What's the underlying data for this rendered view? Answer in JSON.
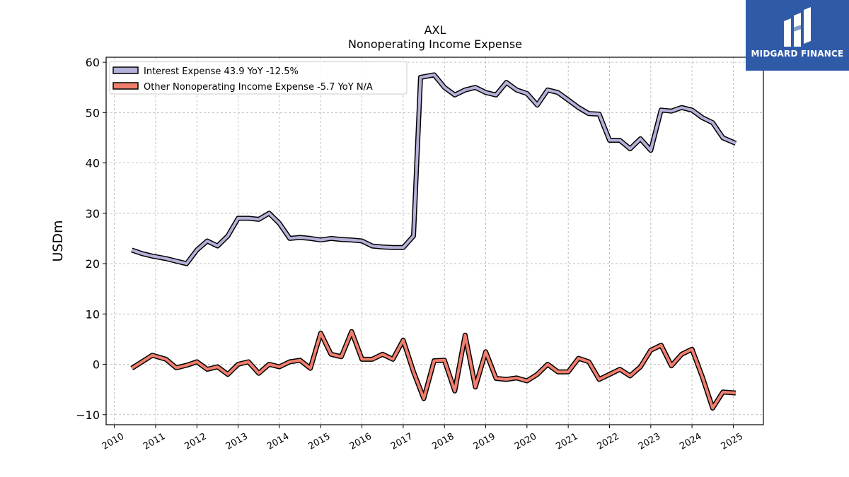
{
  "brand": {
    "name": "MIDGARD FINANCE",
    "icon": "midgard-logo-icon",
    "color": "#2f5aa8"
  },
  "chart_data": {
    "type": "line",
    "title": "AXL",
    "subtitle": "Nonoperating Income Expense",
    "ylabel": "USDm",
    "xlabel": "",
    "ylim": [
      -12,
      61
    ],
    "xlim": [
      2009.8,
      2025.73
    ],
    "yticks": [
      -10,
      0,
      10,
      20,
      30,
      40,
      50,
      60
    ],
    "xticks": [
      "2010",
      "2011",
      "2012",
      "2013",
      "2014",
      "2015",
      "2016",
      "2017",
      "2018",
      "2019",
      "2020",
      "2021",
      "2022",
      "2023",
      "2024",
      "2025"
    ],
    "grid": true,
    "legend_position": "top-left",
    "series": [
      {
        "name": "Interest Expense",
        "legend_label": "Interest Expense  43.9 YoY -12.5%",
        "color": "#b4b1d9",
        "x": [
          2010.42,
          2010.67,
          2010.92,
          2011.25,
          2011.5,
          2011.75,
          2012.0,
          2012.25,
          2012.5,
          2012.75,
          2013.0,
          2013.25,
          2013.5,
          2013.75,
          2014.0,
          2014.25,
          2014.5,
          2014.75,
          2015.0,
          2015.25,
          2015.5,
          2015.75,
          2016.0,
          2016.25,
          2016.5,
          2016.75,
          2017.0,
          2017.25,
          2017.42,
          2017.75,
          2018.0,
          2018.25,
          2018.5,
          2018.75,
          2019.0,
          2019.25,
          2019.5,
          2019.75,
          2020.0,
          2020.25,
          2020.5,
          2020.75,
          2021.0,
          2021.25,
          2021.5,
          2021.75,
          2022.0,
          2022.25,
          2022.5,
          2022.75,
          2023.0,
          2023.25,
          2023.5,
          2023.75,
          2024.0,
          2024.25,
          2024.5,
          2024.75,
          2025.06
        ],
        "y": [
          22.7,
          22.0,
          21.5,
          21.0,
          20.5,
          20.0,
          22.7,
          24.5,
          23.5,
          25.5,
          29.0,
          29.0,
          28.8,
          30.0,
          28.0,
          25.0,
          25.2,
          25.0,
          24.7,
          25.0,
          24.8,
          24.7,
          24.5,
          23.5,
          23.3,
          23.2,
          23.2,
          25.5,
          57.0,
          57.5,
          55.0,
          53.5,
          54.5,
          55.0,
          54.0,
          53.5,
          56.0,
          54.5,
          53.8,
          51.5,
          54.5,
          54.0,
          52.5,
          51.0,
          49.8,
          49.7,
          44.5,
          44.5,
          42.8,
          44.8,
          42.5,
          50.5,
          50.3,
          51.0,
          50.5,
          49.0,
          48.0,
          45.0,
          43.9
        ]
      },
      {
        "name": "Other Nonoperating Income Expense",
        "legend_label": "Other Nonoperating Income Expense  -5.7 YoY N/A",
        "color": "#f07e6e",
        "x": [
          2010.42,
          2010.67,
          2010.92,
          2011.25,
          2011.5,
          2011.75,
          2012.0,
          2012.25,
          2012.5,
          2012.75,
          2013.0,
          2013.25,
          2013.5,
          2013.75,
          2014.0,
          2014.25,
          2014.5,
          2014.75,
          2015.0,
          2015.25,
          2015.5,
          2015.75,
          2016.0,
          2016.25,
          2016.5,
          2016.75,
          2017.0,
          2017.25,
          2017.5,
          2017.75,
          2018.0,
          2018.25,
          2018.5,
          2018.75,
          2019.0,
          2019.25,
          2019.5,
          2019.75,
          2020.0,
          2020.25,
          2020.5,
          2020.75,
          2021.0,
          2021.25,
          2021.5,
          2021.75,
          2022.0,
          2022.25,
          2022.5,
          2022.75,
          2023.0,
          2023.25,
          2023.5,
          2023.75,
          2024.0,
          2024.25,
          2024.5,
          2024.75,
          2025.06
        ],
        "y": [
          -0.8,
          0.5,
          1.8,
          1.0,
          -0.7,
          -0.2,
          0.5,
          -1.0,
          -0.5,
          -2.0,
          0.0,
          0.5,
          -1.8,
          0.0,
          -0.5,
          0.5,
          0.8,
          -0.8,
          6.2,
          2.0,
          1.5,
          6.5,
          1.0,
          1.0,
          2.0,
          1.0,
          4.8,
          -1.5,
          -6.8,
          0.7,
          0.8,
          -5.3,
          5.8,
          -4.5,
          2.5,
          -2.8,
          -3.0,
          -2.7,
          -3.3,
          -2.0,
          0.0,
          -1.5,
          -1.5,
          1.2,
          0.5,
          -3.0,
          -2.0,
          -1.0,
          -2.3,
          -0.5,
          2.8,
          3.8,
          -0.3,
          2.0,
          3.0,
          -2.5,
          -8.7,
          -5.5,
          -5.7
        ]
      }
    ]
  }
}
